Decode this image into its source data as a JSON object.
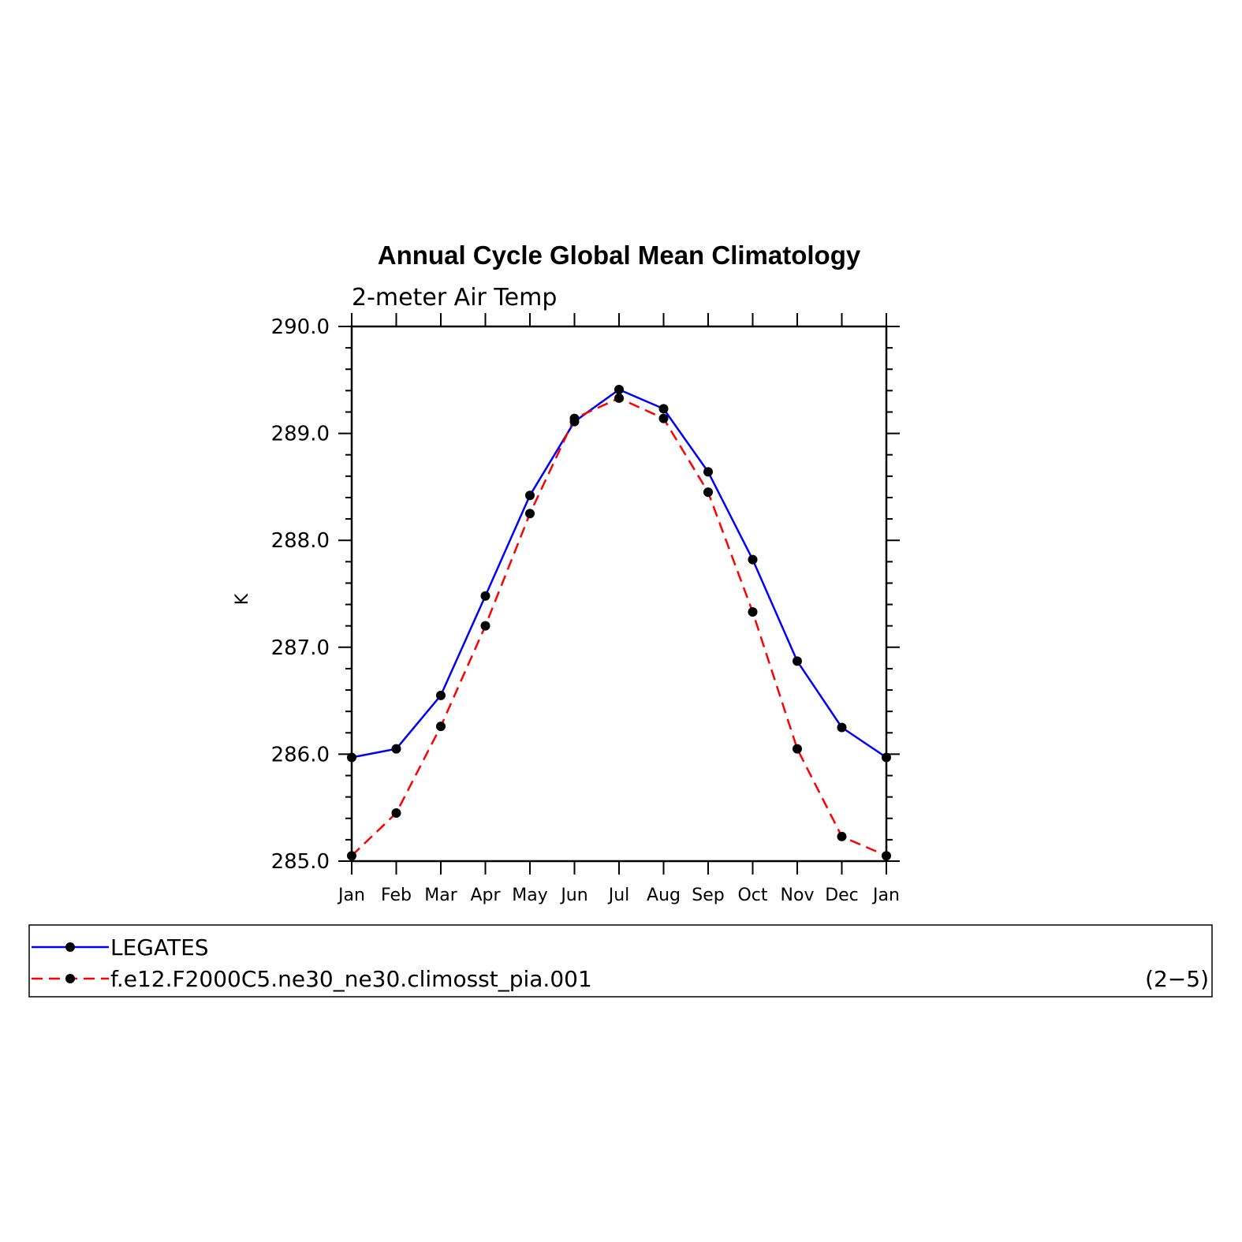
{
  "chart_data": {
    "type": "line",
    "title": "Annual Cycle Global Mean Climatology",
    "subtitle": "2-meter Air Temp",
    "ylabel": "K",
    "xlabel": "",
    "categories": [
      "Jan",
      "Feb",
      "Mar",
      "Apr",
      "May",
      "Jun",
      "Jul",
      "Aug",
      "Sep",
      "Oct",
      "Nov",
      "Dec",
      "Jan"
    ],
    "ylim": [
      285.0,
      290.0
    ],
    "yticks": [
      "285.0",
      "286.0",
      "287.0",
      "288.0",
      "289.0",
      "290.0"
    ],
    "series": [
      {
        "name": "LEGATES",
        "color": "#0000ff",
        "style": "solid",
        "values": [
          285.97,
          286.05,
          286.55,
          287.48,
          288.42,
          289.11,
          289.41,
          289.23,
          288.64,
          287.82,
          286.87,
          286.25,
          285.97
        ]
      },
      {
        "name": "f.e12.F2000C5.ne30_ne30.climosst_pia.001",
        "color": "#ff0000",
        "style": "dashed",
        "values": [
          285.05,
          285.45,
          286.26,
          287.2,
          288.25,
          289.14,
          289.33,
          289.14,
          288.45,
          287.33,
          286.05,
          285.23,
          285.05
        ]
      }
    ],
    "legend_placement": "bottom",
    "panel_label": "(2−5)",
    "grid": false
  }
}
